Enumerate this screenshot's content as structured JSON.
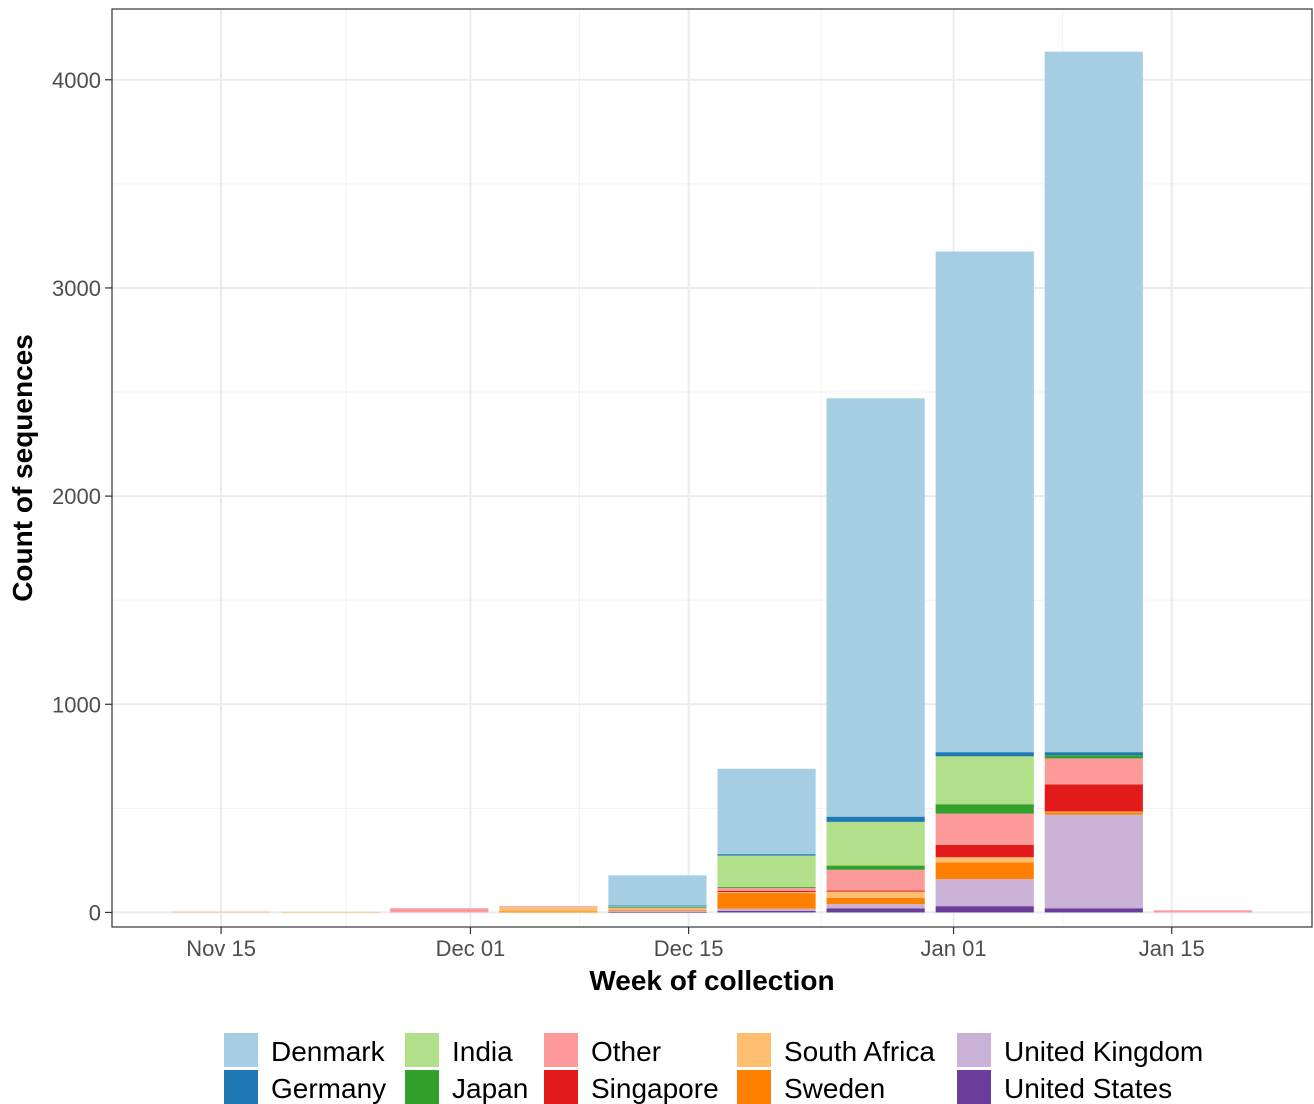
{
  "chart_data": {
    "type": "bar",
    "stacked": true,
    "xlabel": "Week of collection",
    "ylabel": "Count of sequences",
    "x_ticks": [
      "Nov 15",
      "Dec 01",
      "Dec 15",
      "Jan 01",
      "Jan 15"
    ],
    "x_tick_dates": [
      "2021-11-15",
      "2021-12-01",
      "2021-12-15",
      "2022-01-01",
      "2022-01-15"
    ],
    "x": [
      "2021-11-15",
      "2021-11-22",
      "2021-11-29",
      "2021-12-06",
      "2021-12-13",
      "2021-12-20",
      "2021-12-27",
      "2022-01-03",
      "2022-01-10",
      "2022-01-17"
    ],
    "xlim": [
      "2021-11-08",
      "2022-01-24"
    ],
    "ylim": [
      -70,
      4340
    ],
    "y_ticks": [
      0,
      1000,
      2000,
      3000,
      4000
    ],
    "y_tick_labels": [
      "0",
      "1000",
      "2000",
      "3000",
      "4000"
    ],
    "grid": true,
    "legend_position": "bottom",
    "series": [
      {
        "name": "United States",
        "color": "#6a3d9a",
        "values": [
          0,
          0,
          0,
          0,
          3,
          8,
          20,
          30,
          20,
          0
        ]
      },
      {
        "name": "United Kingdom",
        "color": "#cab2d6",
        "values": [
          0,
          0,
          0,
          0,
          5,
          10,
          20,
          130,
          450,
          0
        ]
      },
      {
        "name": "Sweden",
        "color": "#ff7f00",
        "values": [
          0,
          0,
          0,
          5,
          5,
          75,
          30,
          80,
          10,
          0
        ]
      },
      {
        "name": "South Africa",
        "color": "#fdbf6f",
        "values": [
          4,
          3,
          0,
          20,
          5,
          5,
          30,
          25,
          5,
          0
        ]
      },
      {
        "name": "Singapore",
        "color": "#e31a1c",
        "values": [
          0,
          0,
          0,
          0,
          0,
          5,
          5,
          60,
          130,
          0
        ]
      },
      {
        "name": "Other",
        "color": "#fb9a99",
        "values": [
          0,
          0,
          20,
          5,
          5,
          15,
          100,
          150,
          125,
          10
        ]
      },
      {
        "name": "Japan",
        "color": "#33a02c",
        "values": [
          0,
          0,
          0,
          0,
          2,
          5,
          20,
          45,
          15,
          0
        ]
      },
      {
        "name": "India",
        "color": "#b2df8a",
        "values": [
          0,
          0,
          0,
          0,
          5,
          150,
          210,
          230,
          0,
          0
        ]
      },
      {
        "name": "Germany",
        "color": "#1f78b4",
        "values": [
          0,
          0,
          0,
          0,
          3,
          7,
          25,
          20,
          15,
          0
        ]
      },
      {
        "name": "Denmark",
        "color": "#a6cee3",
        "values": [
          0,
          0,
          0,
          0,
          145,
          410,
          2010,
          2405,
          3365,
          0
        ]
      }
    ],
    "legend": [
      {
        "name": "Denmark",
        "color": "#a6cee3"
      },
      {
        "name": "Germany",
        "color": "#1f78b4"
      },
      {
        "name": "India",
        "color": "#b2df8a"
      },
      {
        "name": "Japan",
        "color": "#33a02c"
      },
      {
        "name": "Other",
        "color": "#fb9a99"
      },
      {
        "name": "Singapore",
        "color": "#e31a1c"
      },
      {
        "name": "South Africa",
        "color": "#fdbf6f"
      },
      {
        "name": "Sweden",
        "color": "#ff7f00"
      },
      {
        "name": "United Kingdom",
        "color": "#cab2d6"
      },
      {
        "name": "United States",
        "color": "#6a3d9a"
      }
    ]
  }
}
